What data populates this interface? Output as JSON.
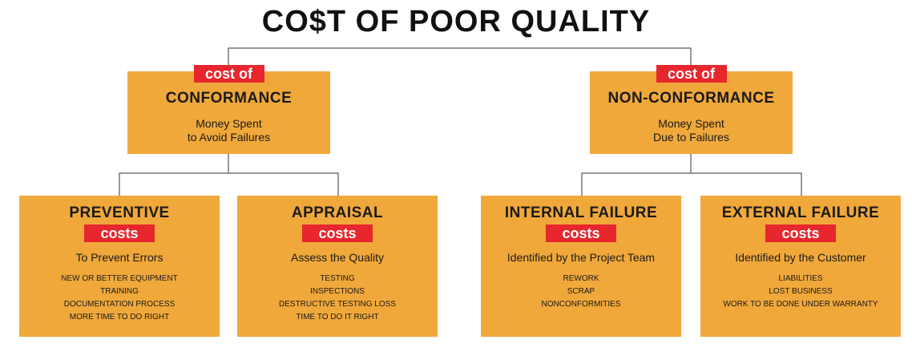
{
  "title": "CO$T OF POOR QUALITY",
  "colors": {
    "box_fill": "#f0a83b",
    "tag_fill": "#e8262d",
    "connector": "#777777"
  },
  "conformance": {
    "tag": "cost of",
    "heading": "CONFORMANCE",
    "desc_line1": "Money Spent",
    "desc_line2": "to Avoid Failures"
  },
  "nonconformance": {
    "tag": "cost of",
    "heading": "NON-CONFORMANCE",
    "desc_line1": "Money Spent",
    "desc_line2": "Due to Failures"
  },
  "categories": [
    {
      "heading": "PREVENTIVE",
      "tag": "costs",
      "desc": "To Prevent Errors",
      "items": [
        "NEW OR BETTER EQUIPMENT",
        "TRAINING",
        "DOCUMENTATION PROCESS",
        "MORE TIME TO DO RIGHT"
      ]
    },
    {
      "heading": "APPRAISAL",
      "tag": "costs",
      "desc": "Assess the Quality",
      "items": [
        "TESTING",
        "INSPECTIONS",
        "DESTRUCTIVE TESTING LOSS",
        "TIME TO DO IT RIGHT"
      ]
    },
    {
      "heading": "INTERNAL FAILURE",
      "tag": "costs",
      "desc": "Identified by the Project Team",
      "items": [
        "REWORK",
        "SCRAP",
        "NONCONFORMITIES"
      ]
    },
    {
      "heading": "EXTERNAL FAILURE",
      "tag": "costs",
      "desc": "Identified by the Customer",
      "items": [
        "LIABILITIES",
        "LOST BUSINESS",
        "WORK TO BE DONE UNDER WARRANTY"
      ]
    }
  ]
}
